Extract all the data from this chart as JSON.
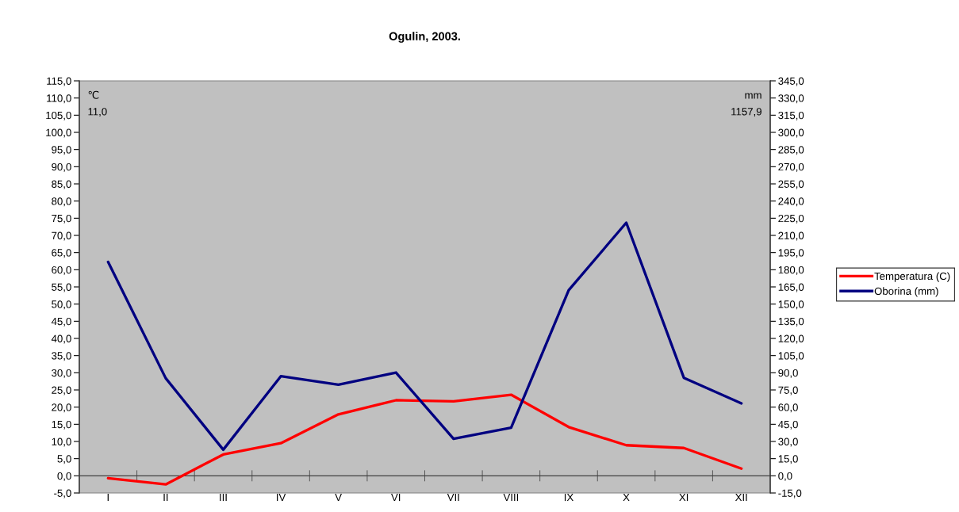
{
  "chart_data": {
    "type": "line",
    "title": "Ogulin, 2003.",
    "categories": [
      "I",
      "II",
      "III",
      "IV",
      "V",
      "VI",
      "VII",
      "VIII",
      "IX",
      "X",
      "XI",
      "XII"
    ],
    "series": [
      {
        "name": "Temperatura (C)",
        "color": "#ff0000",
        "values": [
          -0.7,
          -2.5,
          6.2,
          9.5,
          17.9,
          22.0,
          21.7,
          23.6,
          14.2,
          8.9,
          8.1,
          2.1
        ]
      },
      {
        "name": "Oborina (mm)",
        "color": "#000080",
        "axis": "y2",
        "values": [
          186.8,
          85.3,
          22.8,
          87.0,
          79.6,
          90.2,
          32.3,
          42.0,
          162.1,
          221.1,
          85.6,
          63.3
        ]
      }
    ],
    "ylim": [
      -5,
      115
    ],
    "yticks": [
      {
        "value": -5,
        "label": "-5,0"
      },
      {
        "value": 0,
        "label": "0,0"
      },
      {
        "value": 5,
        "label": "5,0"
      },
      {
        "value": 10,
        "label": "10,0"
      },
      {
        "value": 15,
        "label": "15,0"
      },
      {
        "value": 20,
        "label": "20,0"
      },
      {
        "value": 25,
        "label": "25,0"
      },
      {
        "value": 30,
        "label": "30,0"
      },
      {
        "value": 35,
        "label": "35,0"
      },
      {
        "value": 40,
        "label": "40,0"
      },
      {
        "value": 45,
        "label": "45,0"
      },
      {
        "value": 50,
        "label": "50,0"
      },
      {
        "value": 55,
        "label": "55,0"
      },
      {
        "value": 60,
        "label": "60,0"
      },
      {
        "value": 65,
        "label": "65,0"
      },
      {
        "value": 70,
        "label": "70,0"
      },
      {
        "value": 75,
        "label": "75,0"
      },
      {
        "value": 80,
        "label": "80,0"
      },
      {
        "value": 85,
        "label": "85,0"
      },
      {
        "value": 90,
        "label": "90,0"
      },
      {
        "value": 95,
        "label": "95,0"
      },
      {
        "value": 100,
        "label": "100,0"
      },
      {
        "value": 105,
        "label": "105,0"
      },
      {
        "value": 110,
        "label": "110,0"
      },
      {
        "value": 115,
        "label": "115,0"
      }
    ],
    "y2lim": [
      -15,
      345
    ],
    "y2ticks": [
      {
        "value": -15,
        "label": "-15,0"
      },
      {
        "value": 0,
        "label": "0,0"
      },
      {
        "value": 15,
        "label": "15,0"
      },
      {
        "value": 30,
        "label": "30,0"
      },
      {
        "value": 45,
        "label": "45,0"
      },
      {
        "value": 60,
        "label": "60,0"
      },
      {
        "value": 75,
        "label": "75,0"
      },
      {
        "value": 90,
        "label": "90,0"
      },
      {
        "value": 105,
        "label": "105,0"
      },
      {
        "value": 120,
        "label": "120,0"
      },
      {
        "value": 135,
        "label": "135,0"
      },
      {
        "value": 150,
        "label": "150,0"
      },
      {
        "value": 165,
        "label": "165,0"
      },
      {
        "value": 180,
        "label": "180,0"
      },
      {
        "value": 195,
        "label": "195,0"
      },
      {
        "value": 210,
        "label": "210,0"
      },
      {
        "value": 225,
        "label": "225,0"
      },
      {
        "value": 240,
        "label": "240,0"
      },
      {
        "value": 255,
        "label": "255,0"
      },
      {
        "value": 270,
        "label": "270,0"
      },
      {
        "value": 285,
        "label": "285,0"
      },
      {
        "value": 300,
        "label": "300,0"
      },
      {
        "value": 315,
        "label": "315,0"
      },
      {
        "value": 330,
        "label": "330,0"
      },
      {
        "value": 345,
        "label": "345,0"
      }
    ],
    "annotations": [
      "℃",
      "11,0",
      "mm",
      "1157,9"
    ],
    "ref_lines": [
      {
        "axis": "y",
        "value": 0,
        "color": "#404040"
      }
    ],
    "grid": false,
    "legend": "right",
    "marker": "none",
    "line_style": "solid"
  }
}
